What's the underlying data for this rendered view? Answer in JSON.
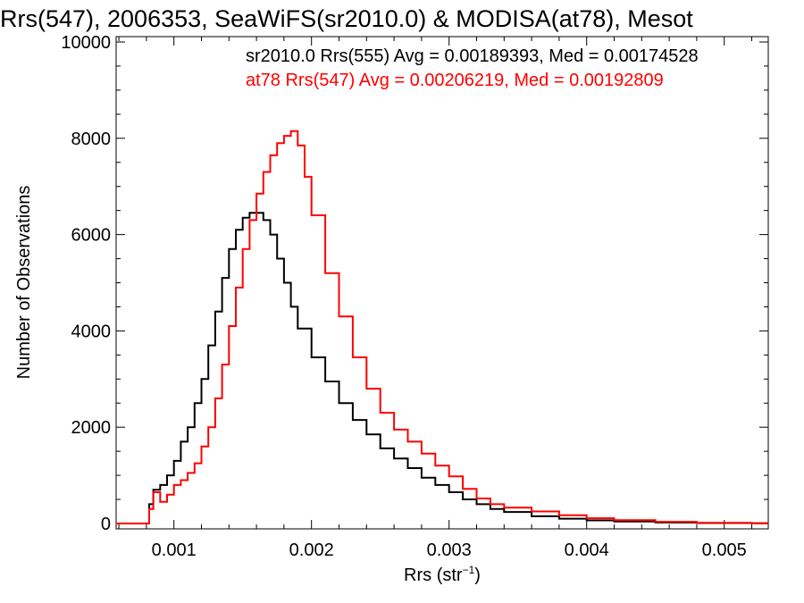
{
  "chart_data": {
    "type": "line",
    "title": "Rrs(547), 2006353, SeaWiFS(sr2010.0) & MODISA(at78), Mesot",
    "xlabel_main": "Rrs (str",
    "xlabel_sup": "−1",
    "xlabel_close": ")",
    "ylabel": "Number of Observations",
    "xlim": [
      0.00058,
      0.00532
    ],
    "ylim": [
      0,
      10000
    ],
    "xticks": [
      0.001,
      0.002,
      0.003,
      0.004,
      0.005
    ],
    "xtick_labels": [
      "0.001",
      "0.002",
      "0.003",
      "0.004",
      "0.005"
    ],
    "yticks": [
      0,
      2000,
      4000,
      6000,
      8000,
      10000
    ],
    "ytick_labels": [
      "0",
      "2000",
      "4000",
      "6000",
      "8000",
      "10000"
    ],
    "grid": false,
    "legend_placement": "top-right",
    "series": [
      {
        "label": "sr2010.0 Rrs(555) Avg = 0.00189393, Med = 0.00174528",
        "color": "#000000",
        "x": [
          0.00058,
          0.0008,
          0.00082,
          0.00085,
          0.0009,
          0.00095,
          0.001,
          0.00105,
          0.0011,
          0.00115,
          0.0012,
          0.00125,
          0.0013,
          0.00135,
          0.0014,
          0.00145,
          0.0015,
          0.00155,
          0.0016,
          0.00165,
          0.0017,
          0.00175,
          0.0018,
          0.00185,
          0.0019,
          0.002,
          0.0021,
          0.0022,
          0.0023,
          0.0024,
          0.0025,
          0.0026,
          0.0027,
          0.0028,
          0.0029,
          0.003,
          0.0031,
          0.0032,
          0.0033,
          0.0034,
          0.0036,
          0.0038,
          0.004,
          0.0042,
          0.0045,
          0.0048,
          0.0052
        ],
        "y": [
          0,
          0,
          400,
          700,
          800,
          1000,
          1300,
          1700,
          2000,
          2500,
          3000,
          3700,
          4400,
          5100,
          5700,
          6100,
          6350,
          6450,
          6450,
          6300,
          6000,
          5500,
          5000,
          4500,
          4050,
          3450,
          2950,
          2500,
          2150,
          1850,
          1560,
          1350,
          1150,
          950,
          800,
          650,
          500,
          400,
          300,
          240,
          150,
          100,
          65,
          40,
          20,
          10,
          5
        ]
      },
      {
        "label": "at78 Rrs(547) Avg = 0.00206219, Med = 0.00192809",
        "color": "#ff0000",
        "x": [
          0.00058,
          0.0008,
          0.00082,
          0.00085,
          0.0009,
          0.00095,
          0.001,
          0.00105,
          0.0011,
          0.00115,
          0.0012,
          0.00125,
          0.0013,
          0.00135,
          0.0014,
          0.00145,
          0.0015,
          0.00155,
          0.0016,
          0.00165,
          0.0017,
          0.00175,
          0.0018,
          0.00185,
          0.0019,
          0.00195,
          0.002,
          0.0021,
          0.0022,
          0.0023,
          0.0024,
          0.0025,
          0.0026,
          0.0027,
          0.0028,
          0.0029,
          0.003,
          0.0031,
          0.0032,
          0.0033,
          0.0034,
          0.0036,
          0.0038,
          0.004,
          0.0042,
          0.0045,
          0.0048,
          0.0052
        ],
        "y": [
          0,
          0,
          300,
          650,
          450,
          600,
          800,
          900,
          1050,
          1250,
          1600,
          2000,
          2600,
          3300,
          4100,
          4900,
          5700,
          6300,
          6850,
          7300,
          7650,
          7900,
          8050,
          8150,
          7850,
          7200,
          6400,
          5200,
          4300,
          3450,
          2800,
          2300,
          1950,
          1700,
          1450,
          1200,
          980,
          720,
          520,
          400,
          330,
          250,
          170,
          110,
          70,
          35,
          15,
          5
        ]
      }
    ]
  }
}
